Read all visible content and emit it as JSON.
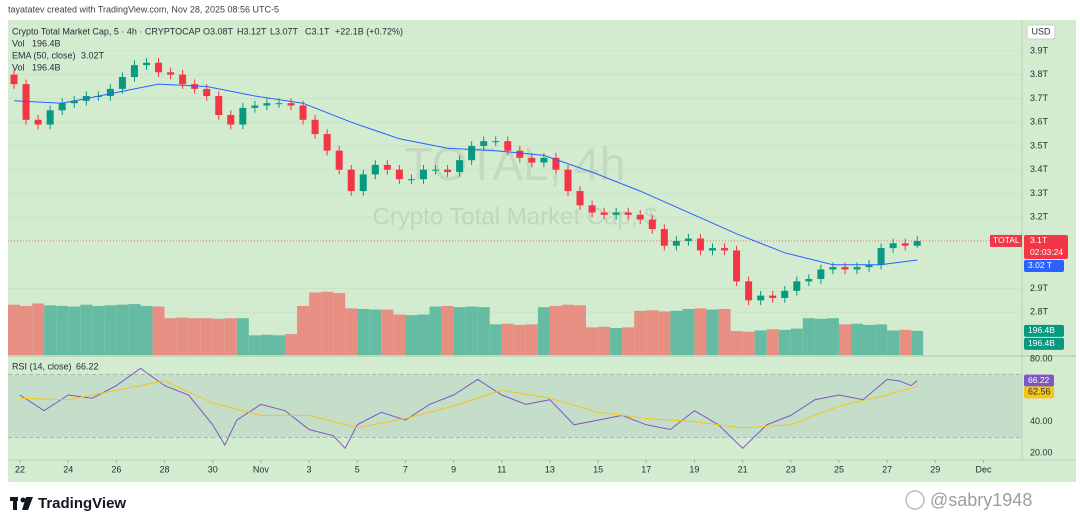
{
  "header": {
    "credit": "tayatatev created with TradingView.com, Nov 28, 2025 08:56 UTC-5"
  },
  "watermark": {
    "symbol": "TOTAL, 4h",
    "description": "Crypto Total Market Cap, $"
  },
  "footer": {
    "logo": "TradingView",
    "handle": "@sabry1948"
  },
  "badges": {
    "currency": "USD",
    "symbol": "TOTAL",
    "price": "3.1T",
    "countdown": "02:03:24",
    "ema": "3.02 T",
    "volume": [
      "196.4B",
      "196.4B"
    ],
    "rsi": "66.22",
    "rsi_ma": "62.56"
  },
  "chart_data": [
    {
      "type": "candlestick",
      "title": "Crypto Total Market Cap, 5 · 4h · CRYPTOCAP",
      "ohlc_legend": [
        "O3.08T",
        "H3.12T",
        "L3.07T",
        "C3.1T",
        "+22.1B (+0.72%)"
      ],
      "up_color": "#089981",
      "down_color": "#f23645",
      "x": [
        21.75,
        22.25,
        22.75,
        23.25,
        23.75,
        24.25,
        24.75,
        25.25,
        25.75,
        26.25,
        26.75,
        27.25,
        27.75,
        28.25,
        28.75,
        29.25,
        29.75,
        30.25,
        30.75,
        31.25,
        31.75,
        32.25,
        32.75,
        33.25,
        33.75,
        34.25,
        34.75,
        35.25,
        35.75,
        36.25,
        36.75,
        37.25,
        37.75,
        38.25,
        38.75,
        39.25,
        39.75,
        40.25,
        40.75,
        41.25,
        41.75,
        42.25,
        42.75,
        43.25,
        43.75,
        44.25,
        44.75,
        45.25,
        45.75,
        46.25,
        46.75,
        47.25,
        47.75,
        48.25,
        48.75,
        49.25,
        49.75,
        50.25,
        50.75,
        51.25,
        51.75,
        52.25,
        52.75,
        53.25,
        53.75,
        54.25,
        54.75,
        55.25,
        55.75,
        56.25,
        56.75,
        57.25,
        57.75,
        58.25,
        58.75,
        59.25
      ],
      "open": [
        3.8,
        3.76,
        3.61,
        3.59,
        3.65,
        3.68,
        3.69,
        3.71,
        3.71,
        3.74,
        3.79,
        3.84,
        3.85,
        3.81,
        3.8,
        3.76,
        3.74,
        3.71,
        3.63,
        3.59,
        3.66,
        3.67,
        3.68,
        3.68,
        3.67,
        3.61,
        3.55,
        3.48,
        3.4,
        3.31,
        3.38,
        3.42,
        3.4,
        3.36,
        3.36,
        3.4,
        3.4,
        3.39,
        3.44,
        3.5,
        3.52,
        3.52,
        3.48,
        3.45,
        3.43,
        3.45,
        3.4,
        3.31,
        3.25,
        3.22,
        3.21,
        3.22,
        3.21,
        3.19,
        3.15,
        3.08,
        3.1,
        3.11,
        3.06,
        3.07,
        3.06,
        2.93,
        2.85,
        2.87,
        2.86,
        2.89,
        2.93,
        2.94,
        2.98,
        2.99,
        2.98,
        2.99,
        3.0,
        3.07,
        3.09,
        3.08
      ],
      "high": [
        3.82,
        3.78,
        3.63,
        3.67,
        3.7,
        3.71,
        3.73,
        3.73,
        3.76,
        3.81,
        3.86,
        3.87,
        3.87,
        3.83,
        3.82,
        3.78,
        3.76,
        3.73,
        3.65,
        3.68,
        3.69,
        3.7,
        3.7,
        3.7,
        3.69,
        3.63,
        3.57,
        3.5,
        3.42,
        3.4,
        3.44,
        3.44,
        3.42,
        3.38,
        3.42,
        3.42,
        3.42,
        3.46,
        3.52,
        3.54,
        3.54,
        3.54,
        3.5,
        3.47,
        3.47,
        3.47,
        3.42,
        3.33,
        3.27,
        3.24,
        3.24,
        3.24,
        3.23,
        3.21,
        3.17,
        3.12,
        3.13,
        3.13,
        3.09,
        3.09,
        3.08,
        2.95,
        2.89,
        2.89,
        2.91,
        2.95,
        2.96,
        3.0,
        3.01,
        3.01,
        3.01,
        3.02,
        3.09,
        3.11,
        3.11,
        3.12
      ],
      "low": [
        3.74,
        3.59,
        3.57,
        3.57,
        3.63,
        3.66,
        3.67,
        3.69,
        3.69,
        3.72,
        3.77,
        3.82,
        3.79,
        3.78,
        3.74,
        3.72,
        3.69,
        3.61,
        3.57,
        3.57,
        3.64,
        3.65,
        3.66,
        3.65,
        3.59,
        3.53,
        3.46,
        3.38,
        3.29,
        3.29,
        3.36,
        3.38,
        3.34,
        3.34,
        3.34,
        3.38,
        3.37,
        3.37,
        3.42,
        3.48,
        3.5,
        3.46,
        3.43,
        3.41,
        3.41,
        3.38,
        3.29,
        3.23,
        3.2,
        3.19,
        3.19,
        3.19,
        3.17,
        3.13,
        3.06,
        3.06,
        3.08,
        3.04,
        3.04,
        3.04,
        2.91,
        2.83,
        2.83,
        2.84,
        2.84,
        2.87,
        2.91,
        2.92,
        2.96,
        2.96,
        2.96,
        2.97,
        2.98,
        3.05,
        3.06,
        3.07
      ],
      "close": [
        3.76,
        3.61,
        3.59,
        3.65,
        3.68,
        3.69,
        3.71,
        3.71,
        3.74,
        3.79,
        3.84,
        3.85,
        3.81,
        3.8,
        3.76,
        3.74,
        3.71,
        3.63,
        3.59,
        3.66,
        3.67,
        3.68,
        3.68,
        3.67,
        3.61,
        3.55,
        3.48,
        3.4,
        3.31,
        3.38,
        3.42,
        3.4,
        3.36,
        3.36,
        3.4,
        3.4,
        3.39,
        3.44,
        3.5,
        3.52,
        3.52,
        3.48,
        3.45,
        3.43,
        3.45,
        3.4,
        3.31,
        3.25,
        3.22,
        3.21,
        3.22,
        3.21,
        3.19,
        3.15,
        3.08,
        3.1,
        3.11,
        3.06,
        3.07,
        3.06,
        2.93,
        2.85,
        2.87,
        2.86,
        2.89,
        2.93,
        2.94,
        2.98,
        2.99,
        2.98,
        2.99,
        3.0,
        3.07,
        3.09,
        3.08,
        3.1
      ],
      "series": [
        {
          "name": "Vol",
          "axis": "y2",
          "value_label": "196.4B",
          "up_color": "#5fb9a0",
          "down_color": "#e98a7e",
          "values": [
            410,
            400,
            420,
            405,
            400,
            395,
            410,
            400,
            405,
            410,
            415,
            400,
            395,
            300,
            305,
            300,
            300,
            295,
            300,
            300,
            160,
            165,
            160,
            170,
            400,
            510,
            515,
            505,
            380,
            375,
            370,
            370,
            330,
            325,
            330,
            395,
            400,
            390,
            395,
            390,
            250,
            255,
            245,
            250,
            390,
            400,
            410,
            405,
            225,
            230,
            220,
            225,
            360,
            365,
            355,
            360,
            375,
            380,
            370,
            375,
            195,
            190,
            200,
            210,
            205,
            215,
            300,
            295,
            300,
            250,
            255,
            245,
            250,
            200,
            205,
            196.4
          ]
        },
        {
          "name": "EMA (50, close)",
          "value_label": "3.02T",
          "color": "#2962ff",
          "x": [
            21.75,
            23.75,
            25.75,
            27.75,
            29.75,
            31.75,
            33.75,
            35.75,
            37.75,
            39.75,
            41.75,
            43.75,
            45.75,
            47.75,
            49.75,
            51.75,
            53.75,
            55.75,
            57.75,
            59.25
          ],
          "values": [
            3.69,
            3.68,
            3.72,
            3.76,
            3.75,
            3.71,
            3.68,
            3.6,
            3.53,
            3.49,
            3.48,
            3.46,
            3.39,
            3.31,
            3.22,
            3.13,
            3.05,
            3.0,
            3.0,
            3.02
          ]
        }
      ],
      "xlim": [
        21.5,
        63.6
      ],
      "xticks": [
        22,
        24,
        26,
        28,
        30,
        {
          "value": 32,
          "label": "Nov"
        },
        {
          "value": 34,
          "label": "3"
        },
        {
          "value": 36,
          "label": "5"
        },
        {
          "value": 38,
          "label": "7"
        },
        {
          "value": 40,
          "label": "9"
        },
        {
          "value": 42,
          "label": "11"
        },
        {
          "value": 44,
          "label": "13"
        },
        {
          "value": 46,
          "label": "15"
        },
        {
          "value": 48,
          "label": "17"
        },
        {
          "value": 50,
          "label": "19"
        },
        {
          "value": 52,
          "label": "21"
        },
        {
          "value": 54,
          "label": "23"
        },
        {
          "value": 56,
          "label": "25"
        },
        {
          "value": 58,
          "label": "27"
        },
        {
          "value": 60,
          "label": "29"
        },
        {
          "value": 62,
          "label": "Dec"
        }
      ],
      "ylim": [
        2.62,
        4.03
      ],
      "yticks": [
        {
          "value": 2.8,
          "label": "2.8T"
        },
        {
          "value": 2.9,
          "label": "2.9T"
        },
        {
          "value": 3.2,
          "label": "3.2T"
        },
        {
          "value": 3.3,
          "label": "3.3T"
        },
        {
          "value": 3.4,
          "label": "3.4T"
        },
        {
          "value": 3.5,
          "label": "3.5T"
        },
        {
          "value": 3.6,
          "label": "3.6T"
        },
        {
          "value": 3.7,
          "label": "3.7T"
        },
        {
          "value": 3.8,
          "label": "3.8T"
        },
        {
          "value": 3.9,
          "label": "3.9T"
        }
      ],
      "y2lim": [
        0,
        2730
      ],
      "grid": true
    },
    {
      "type": "line",
      "title": "RSI (14, close)",
      "value_label": "66.22",
      "ylim": [
        15.5,
        81.3
      ],
      "yticks": [
        {
          "value": 20,
          "label": "20.00"
        },
        {
          "value": 40,
          "label": "40.00"
        },
        {
          "value": 80,
          "label": "80.00"
        }
      ],
      "band": [
        30,
        70
      ],
      "series": [
        {
          "color": "#7e57c2",
          "x": [
            22,
            23,
            24,
            25,
            26,
            27,
            28,
            29,
            30,
            30.5,
            31,
            32,
            33,
            34,
            35,
            35.5,
            36,
            37,
            38,
            39,
            40,
            41,
            42,
            43,
            44,
            45,
            46,
            47,
            48,
            49,
            50,
            51,
            52,
            53,
            54,
            55,
            56,
            57,
            58,
            58.5,
            59,
            59.25
          ],
          "values": [
            57,
            47,
            57,
            55,
            63,
            74,
            63,
            57,
            38,
            25,
            41,
            51,
            47,
            35,
            31,
            23,
            38,
            46,
            41,
            51,
            57,
            67,
            57,
            51,
            54,
            38,
            41,
            44,
            38,
            35,
            47,
            38,
            23,
            38,
            44,
            54,
            57,
            54,
            67,
            66,
            63,
            66.22
          ]
        },
        {
          "color": "#f5c518",
          "x": [
            22,
            24,
            26,
            28,
            30,
            32,
            34,
            36,
            38,
            40,
            42,
            44,
            46,
            48,
            50,
            52,
            54,
            56,
            58,
            59.25
          ],
          "values": [
            55,
            54,
            60,
            66,
            52,
            44,
            44,
            36,
            42,
            50,
            60,
            55,
            46,
            42,
            40,
            36,
            38,
            50,
            57,
            62.56
          ]
        }
      ]
    }
  ]
}
